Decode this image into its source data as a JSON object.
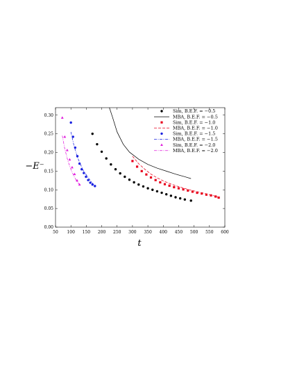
{
  "chart_data": {
    "type": "line",
    "title": "",
    "xlabel": "t",
    "ylabel": "−E⁻",
    "xlim": [
      50,
      600
    ],
    "ylim": [
      0.0,
      0.32
    ],
    "xticks": [
      "50",
      "100",
      "150",
      "200",
      "250",
      "300",
      "350",
      "400",
      "450",
      "500",
      "550",
      "600"
    ],
    "yticks": [
      "0.00",
      "0.05",
      "0.10",
      "0.15",
      "0.20",
      "0.25",
      "0.30"
    ],
    "grid": false,
    "legend_position": "top-right",
    "series": [
      {
        "name": "Sim, B.E.F. = −0.5",
        "kind": "scatter",
        "marker": "circle",
        "color": "#000000",
        "x": [
          170,
          185,
          200,
          215,
          230,
          245,
          260,
          275,
          290,
          305,
          320,
          335,
          350,
          365,
          380,
          395,
          410,
          425,
          440,
          455,
          470,
          490
        ],
        "y": [
          0.25,
          0.222,
          0.202,
          0.184,
          0.168,
          0.155,
          0.144,
          0.135,
          0.127,
          0.12,
          0.114,
          0.109,
          0.104,
          0.1,
          0.096,
          0.092,
          0.088,
          0.084,
          0.08,
          0.077,
          0.074,
          0.071
        ]
      },
      {
        "name": "MBA,  B.E.F. = −0.5",
        "kind": "line",
        "dash": "solid",
        "color": "#000000",
        "x": [
          225,
          235,
          250,
          270,
          290,
          320,
          350,
          380,
          410,
          440,
          470,
          490
        ],
        "y": [
          0.32,
          0.295,
          0.255,
          0.222,
          0.201,
          0.182,
          0.168,
          0.158,
          0.15,
          0.142,
          0.135,
          0.13
        ]
      },
      {
        "name": "Sim, B.E.F. = −1.0",
        "kind": "scatter",
        "marker": "square",
        "color": "#e8001c",
        "x": [
          300,
          315,
          330,
          345,
          360,
          375,
          390,
          405,
          420,
          435,
          450,
          465,
          480,
          495,
          510,
          525,
          540,
          555,
          570,
          580
        ],
        "y": [
          0.177,
          0.162,
          0.15,
          0.141,
          0.133,
          0.126,
          0.12,
          0.115,
          0.111,
          0.107,
          0.104,
          0.101,
          0.098,
          0.095,
          0.092,
          0.09,
          0.087,
          0.085,
          0.082,
          0.079
        ]
      },
      {
        "name": "MBA,  B.E.F. = −1.0",
        "kind": "line",
        "dash": "dashed",
        "color": "#e8001c",
        "x": [
          300,
          320,
          340,
          360,
          380,
          400,
          420,
          440,
          460,
          480,
          500,
          520,
          540,
          560,
          580
        ],
        "y": [
          0.19,
          0.17,
          0.155,
          0.142,
          0.132,
          0.124,
          0.117,
          0.111,
          0.106,
          0.101,
          0.097,
          0.093,
          0.089,
          0.085,
          0.08
        ]
      },
      {
        "name": "Sim, B.E.F. = −1.5",
        "kind": "scatter",
        "marker": "circle",
        "color": "#1a22e0",
        "x": [
          100,
          107,
          114,
          121,
          128,
          135,
          142,
          149,
          156,
          163,
          170,
          178
        ],
        "y": [
          0.28,
          0.242,
          0.213,
          0.19,
          0.17,
          0.155,
          0.145,
          0.135,
          0.126,
          0.119,
          0.114,
          0.11
        ]
      },
      {
        "name": "MBA,  B.E.F. = −1.5",
        "kind": "line",
        "dash": "dashdot",
        "color": "#1a22e0",
        "x": [
          100,
          110,
          120,
          130,
          140,
          150,
          160,
          170,
          178
        ],
        "y": [
          0.255,
          0.218,
          0.19,
          0.17,
          0.152,
          0.14,
          0.128,
          0.118,
          0.11
        ]
      },
      {
        "name": "Sim, B.E.F. = −2.0",
        "kind": "scatter",
        "marker": "triangle",
        "color": "#e01adc",
        "x": [
          72,
          80,
          88,
          96,
          104,
          112,
          120,
          128
        ],
        "y": [
          0.293,
          0.242,
          0.206,
          0.181,
          0.16,
          0.142,
          0.125,
          0.114
        ]
      },
      {
        "name": "MBA,  B.E.F. = −2.0",
        "kind": "line",
        "dash": "dashdot",
        "color": "#e01adc",
        "x": [
          72,
          80,
          90,
          100,
          110,
          120,
          128
        ],
        "y": [
          0.245,
          0.21,
          0.178,
          0.155,
          0.136,
          0.122,
          0.114
        ]
      }
    ]
  }
}
